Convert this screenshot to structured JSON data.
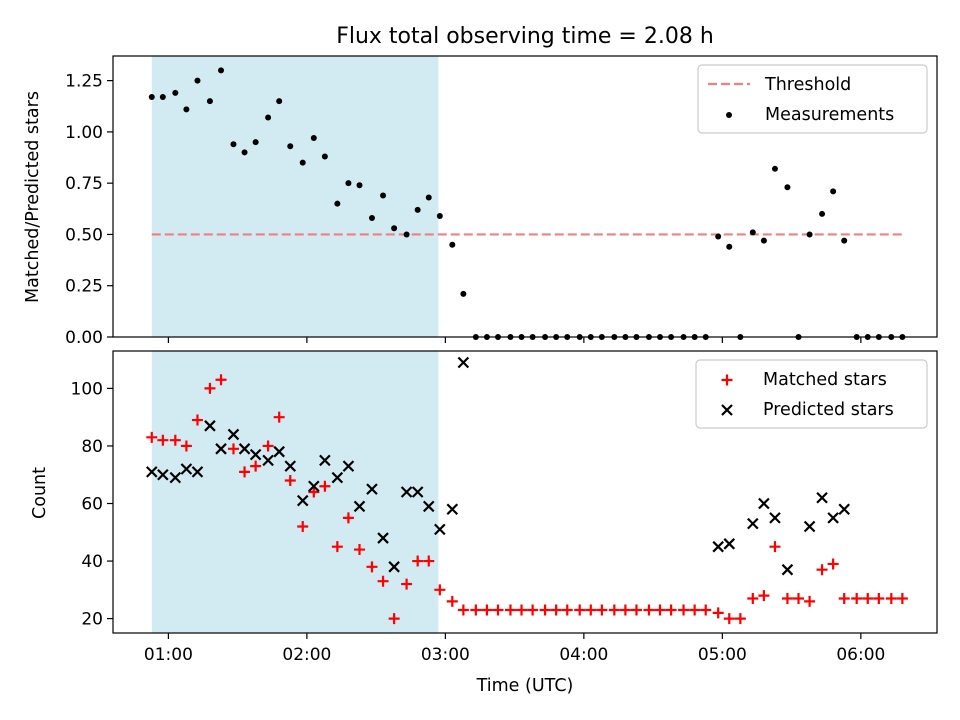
{
  "title": "Flux total observing time = 2.08 h",
  "shaded_region": {
    "start": 0.88,
    "end": 2.95,
    "color": "#add8e6"
  },
  "chart_data": [
    {
      "type": "scatter",
      "name": "ratio",
      "ylabel": "Matched/Predicted stars",
      "xlabel": "",
      "xlim": [
        0.6,
        6.55
      ],
      "ylim": [
        0,
        1.37
      ],
      "yticks": [
        0,
        0.25,
        0.5,
        0.75,
        1.0,
        1.25
      ],
      "ytick_labels": [
        "0.00",
        "0.25",
        "0.50",
        "0.75",
        "1.00",
        "1.25"
      ],
      "legend_position": "top-right",
      "threshold": {
        "name": "Threshold",
        "value": 0.5,
        "x_range": [
          0.88,
          6.3
        ],
        "color": "#f08080"
      },
      "series": [
        {
          "name": "Measurements",
          "color": "#000000",
          "marker": "dot",
          "x": [
            0.88,
            0.96,
            1.05,
            1.13,
            1.21,
            1.3,
            1.38,
            1.47,
            1.55,
            1.63,
            1.72,
            1.8,
            1.88,
            1.97,
            2.05,
            2.13,
            2.22,
            2.3,
            2.38,
            2.47,
            2.55,
            2.63,
            2.72,
            2.8,
            2.88,
            2.96,
            3.05,
            3.13,
            3.22,
            3.3,
            3.38,
            3.47,
            3.55,
            3.63,
            3.72,
            3.8,
            3.88,
            3.97,
            4.05,
            4.13,
            4.22,
            4.3,
            4.38,
            4.47,
            4.55,
            4.63,
            4.72,
            4.8,
            4.88,
            4.97,
            5.05,
            5.13,
            5.22,
            5.3,
            5.38,
            5.47,
            5.55,
            5.63,
            5.72,
            5.8,
            5.88,
            5.97,
            6.05,
            6.13,
            6.22,
            6.3
          ],
          "y": [
            1.17,
            1.17,
            1.19,
            1.11,
            1.25,
            1.15,
            1.3,
            0.94,
            0.9,
            0.95,
            1.07,
            1.15,
            0.93,
            0.85,
            0.97,
            0.88,
            0.65,
            0.75,
            0.74,
            0.58,
            0.69,
            0.53,
            0.5,
            0.62,
            0.68,
            0.59,
            0.45,
            0.21,
            0,
            0,
            0,
            0,
            0,
            0,
            0,
            0,
            0,
            0,
            0,
            0,
            0,
            0,
            0,
            0,
            0,
            0,
            0,
            0,
            0,
            0.49,
            0.44,
            0,
            0.51,
            0.47,
            0.82,
            0.73,
            0,
            0.5,
            0.6,
            0.71,
            0.47,
            0,
            0,
            0,
            0,
            0
          ]
        }
      ]
    },
    {
      "type": "scatter",
      "name": "counts",
      "ylabel": "Count",
      "xlabel": "Time (UTC)",
      "xlim": [
        0.6,
        6.55
      ],
      "ylim": [
        15,
        113
      ],
      "yticks": [
        20,
        40,
        60,
        80,
        100
      ],
      "ytick_labels": [
        "20",
        "40",
        "60",
        "80",
        "100"
      ],
      "xticks": [
        1,
        2,
        3,
        4,
        5,
        6
      ],
      "xtick_labels": [
        "01:00",
        "02:00",
        "03:00",
        "04:00",
        "05:00",
        "06:00"
      ],
      "legend_position": "top-right",
      "series": [
        {
          "name": "Matched stars",
          "color": "#ff0000",
          "marker": "plus",
          "x": [
            0.88,
            0.96,
            1.05,
            1.13,
            1.21,
            1.3,
            1.38,
            1.47,
            1.55,
            1.63,
            1.72,
            1.8,
            1.88,
            1.97,
            2.05,
            2.13,
            2.22,
            2.3,
            2.38,
            2.47,
            2.55,
            2.63,
            2.72,
            2.8,
            2.88,
            2.96,
            3.05,
            3.13,
            3.22,
            3.3,
            3.38,
            3.47,
            3.55,
            3.63,
            3.72,
            3.8,
            3.88,
            3.97,
            4.05,
            4.13,
            4.22,
            4.3,
            4.38,
            4.47,
            4.55,
            4.63,
            4.72,
            4.8,
            4.88,
            4.97,
            5.05,
            5.13,
            5.22,
            5.3,
            5.38,
            5.47,
            5.55,
            5.63,
            5.72,
            5.8,
            5.88,
            5.97,
            6.05,
            6.13,
            6.22,
            6.3
          ],
          "y": [
            83,
            82,
            82,
            80,
            89,
            100,
            103,
            79,
            71,
            73,
            80,
            90,
            68,
            52,
            64,
            66,
            45,
            55,
            44,
            38,
            33,
            20,
            32,
            40,
            40,
            30,
            26,
            23,
            23,
            23,
            23,
            23,
            23,
            23,
            23,
            23,
            23,
            23,
            23,
            23,
            23,
            23,
            23,
            23,
            23,
            23,
            23,
            23,
            23,
            22,
            20,
            20,
            27,
            28,
            45,
            27,
            27,
            26,
            37,
            39,
            27,
            27,
            27,
            27,
            27,
            27
          ]
        },
        {
          "name": "Predicted stars",
          "color": "#000000",
          "marker": "x",
          "x": [
            0.88,
            0.96,
            1.05,
            1.13,
            1.21,
            1.3,
            1.38,
            1.47,
            1.55,
            1.63,
            1.72,
            1.8,
            1.88,
            1.97,
            2.05,
            2.13,
            2.22,
            2.3,
            2.38,
            2.47,
            2.55,
            2.63,
            2.72,
            2.8,
            2.88,
            2.96,
            3.05,
            3.13,
            4.97,
            5.05,
            5.22,
            5.3,
            5.38,
            5.47,
            5.63,
            5.72,
            5.8,
            5.88
          ],
          "y": [
            71,
            70,
            69,
            72,
            71,
            87,
            79,
            84,
            79,
            77,
            75,
            78,
            73,
            61,
            66,
            75,
            69,
            73,
            59,
            65,
            48,
            38,
            64,
            64,
            59,
            51,
            58,
            109,
            45,
            46,
            53,
            60,
            55,
            37,
            52,
            62,
            55,
            58
          ]
        }
      ]
    }
  ]
}
